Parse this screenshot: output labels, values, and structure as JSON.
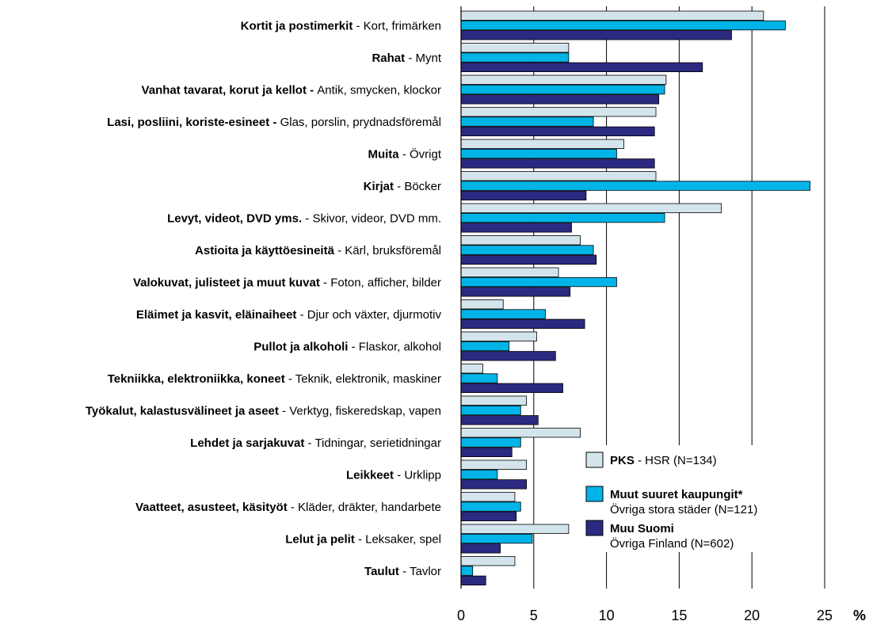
{
  "chart_data": {
    "type": "bar",
    "orientation": "horizontal",
    "categories": [
      {
        "fi": "Kortit ja postimerkit",
        "sep": " - ",
        "sv": "Kort, frimärken"
      },
      {
        "fi": "Rahat",
        "sep": " - ",
        "sv": "Mynt"
      },
      {
        "fi": "Vanhat tavarat, korut ja kellot - ",
        "sep": "",
        "sv": "Antik, smycken, klockor"
      },
      {
        "fi": "Lasi, posliini, koriste-esineet - ",
        "sep": "",
        "sv": "Glas, porslin, prydnadsföremål"
      },
      {
        "fi": "Muita",
        "sep": " - ",
        "sv": "Övrigt"
      },
      {
        "fi": "Kirjat",
        "sep": " - ",
        "sv": "Böcker"
      },
      {
        "fi": "Levyt, videot, DVD yms.",
        "sep": " - ",
        "sv": "Skivor, videor, DVD mm."
      },
      {
        "fi": "Astioita ja käyttöesineitä",
        "sep": " - ",
        "sv": "Kärl, bruksföremål"
      },
      {
        "fi": "Valokuvat, julisteet ja muut kuvat",
        "sep": " - ",
        "sv": "Foton, afficher, bilder"
      },
      {
        "fi": "Eläimet ja kasvit, eläinaiheet",
        "sep": " - ",
        "sv": "Djur och växter, djurmotiv"
      },
      {
        "fi": "Pullot ja alkoholi",
        "sep": " - ",
        "sv": "Flaskor, alkohol"
      },
      {
        "fi": "Tekniikka, elektroniikka, koneet",
        "sep": " - ",
        "sv": "Teknik, elektronik, maskiner"
      },
      {
        "fi": "Työkalut, kalastusvälineet ja aseet",
        "sep": " - ",
        "sv": "Verktyg, fiskeredskap, vapen"
      },
      {
        "fi": "Lehdet ja sarjakuvat",
        "sep": " - ",
        "sv": "Tidningar, serietidningar"
      },
      {
        "fi": "Leikkeet",
        "sep": " - ",
        "sv": "Urklipp"
      },
      {
        "fi": "Vaatteet, asusteet, käsityöt",
        "sep": " - ",
        "sv": "Kläder, dräkter, handarbete"
      },
      {
        "fi": "Lelut ja pelit",
        "sep": " - ",
        "sv": "Leksaker, spel"
      },
      {
        "fi": "Taulut",
        "sep": " - ",
        "sv": "Tavlor"
      }
    ],
    "series": [
      {
        "legend_bold": "PKS",
        "legend_rest": " - HSR (N=134)",
        "legend_line2": "",
        "color": "#d3e4ec",
        "values": [
          20.8,
          7.4,
          14.1,
          13.4,
          11.2,
          13.4,
          17.9,
          8.2,
          6.7,
          2.9,
          5.2,
          1.5,
          4.5,
          8.2,
          4.5,
          3.7,
          7.4,
          3.7
        ]
      },
      {
        "legend_bold": "Muut suuret kaupungit*",
        "legend_rest": "",
        "legend_line2": "Övriga stora städer (N=121)",
        "color": "#00b4e8",
        "values": [
          22.3,
          7.4,
          14.0,
          9.1,
          10.7,
          24.0,
          14.0,
          9.1,
          10.7,
          5.8,
          3.3,
          2.5,
          4.1,
          4.1,
          2.5,
          4.1,
          4.9,
          0.8
        ]
      },
      {
        "legend_bold": "Muu Suomi",
        "legend_rest": "",
        "legend_line2": "Övriga Finland (N=602)",
        "color": "#2b2a80",
        "values": [
          18.6,
          16.6,
          13.6,
          13.3,
          13.3,
          8.6,
          7.6,
          9.3,
          7.5,
          8.5,
          6.5,
          7.0,
          5.3,
          3.5,
          4.5,
          3.8,
          2.7,
          1.7
        ]
      }
    ],
    "xlim": [
      0,
      25
    ],
    "xticks": [
      0,
      5,
      10,
      15,
      20,
      25
    ],
    "xunit": "%",
    "grid": "vertical",
    "legend_position": "bottom-right"
  }
}
